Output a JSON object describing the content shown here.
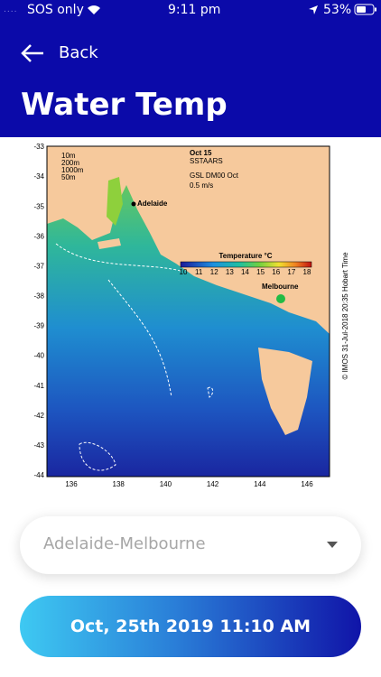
{
  "status_bar": {
    "carrier": "SOS only",
    "time": "9:11 pm",
    "battery": "53%"
  },
  "header": {
    "back": "Back",
    "title": "Water Temp"
  },
  "map": {
    "date": "Oct 15",
    "product": "SSTAARS",
    "source": "GSL DM00 Oct",
    "scale": "0.5 m/s",
    "depth_legend": [
      "10m",
      "200m",
      "1000m",
      "50m"
    ],
    "places": [
      "Adelaide",
      "Melbourne"
    ],
    "colorbar_title": "Temperature °C",
    "colorbar_ticks": [
      10,
      11,
      12,
      13,
      14,
      15,
      16,
      17,
      18
    ],
    "lat_ticks": [
      -33,
      -34,
      -35,
      -36,
      -37,
      -38,
      -39,
      -40,
      -41,
      -42,
      -43,
      -44
    ],
    "lon_ticks": [
      136,
      138,
      140,
      142,
      144,
      146
    ],
    "credit": "© IMOS 31-Jul-2018 20:35 Hobart Time"
  },
  "region_select": {
    "value": "Adelaide-Melbourne"
  },
  "date_button": {
    "label": "Oct, 25th 2019 11:10 AM"
  }
}
